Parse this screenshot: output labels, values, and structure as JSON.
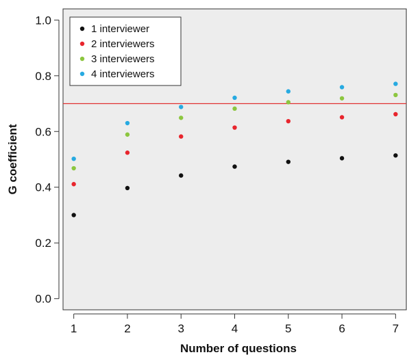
{
  "chart_data": {
    "type": "scatter",
    "title": "",
    "xlabel": "Number of questions",
    "ylabel": "G coefficient",
    "x": [
      1,
      2,
      3,
      4,
      5,
      6,
      7
    ],
    "xlim": [
      0.8,
      7.2
    ],
    "ylim": [
      -0.04,
      1.04
    ],
    "yticks": [
      0.0,
      0.2,
      0.4,
      0.6,
      0.8,
      1.0
    ],
    "ytick_labels": [
      "0.0",
      "0.2",
      "0.4",
      "0.6",
      "0.8",
      "1.0"
    ],
    "xticks": [
      1,
      2,
      3,
      4,
      5,
      6,
      7
    ],
    "xtick_labels": [
      "1",
      "2",
      "3",
      "4",
      "5",
      "6",
      "7"
    ],
    "series": [
      {
        "name": "1 interviewer",
        "color": "#111111",
        "values": [
          0.3,
          0.397,
          0.442,
          0.474,
          0.491,
          0.504,
          0.514
        ]
      },
      {
        "name": "2 interviewers",
        "color": "#e8252d",
        "values": [
          0.411,
          0.524,
          0.582,
          0.614,
          0.637,
          0.651,
          0.662
        ]
      },
      {
        "name": "3 interviewers",
        "color": "#8cc63f",
        "values": [
          0.468,
          0.589,
          0.649,
          0.682,
          0.705,
          0.719,
          0.731
        ]
      },
      {
        "name": "4 interviewers",
        "color": "#27aae1",
        "values": [
          0.502,
          0.63,
          0.688,
          0.721,
          0.744,
          0.759,
          0.771
        ]
      }
    ],
    "reference_line": {
      "y": 0.7,
      "color": "#e03030"
    },
    "background": "#ededed",
    "grid": false,
    "legend_position": "top-left"
  }
}
